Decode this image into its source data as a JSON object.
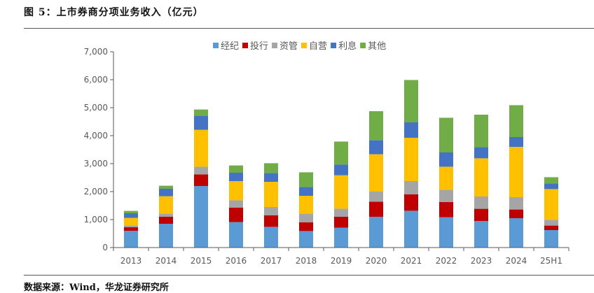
{
  "figure": {
    "title": "图 5：上市券商分项业务收入（亿元）",
    "source": "数据来源：Wind，华龙证券研究所"
  },
  "chart_data": {
    "type": "bar",
    "stacked": true,
    "title": "上市券商分项业务收入（亿元）",
    "xlabel": "",
    "ylabel": "",
    "ylim": [
      0,
      7000
    ],
    "yticks": [
      0,
      1000,
      2000,
      3000,
      4000,
      5000,
      6000,
      7000
    ],
    "ytick_labels": [
      "0",
      "1,000",
      "2,000",
      "3,000",
      "4,000",
      "5,000",
      "6,000",
      "7,000"
    ],
    "grid": false,
    "legend_position": "top-center",
    "categories": [
      "2013",
      "2014",
      "2015",
      "2016",
      "2017",
      "2018",
      "2019",
      "2020",
      "2021",
      "2022",
      "2023",
      "2024",
      "25H1"
    ],
    "series": [
      {
        "name": "经纪",
        "color": "#5B9BD5",
        "values": [
          600,
          850,
          2200,
          910,
          740,
          590,
          710,
          1100,
          1315,
          1085,
          950,
          1050,
          625
        ]
      },
      {
        "name": "投行",
        "color": "#C00000",
        "values": [
          125,
          250,
          415,
          515,
          410,
          310,
          390,
          540,
          585,
          540,
          435,
          310,
          160
        ]
      },
      {
        "name": "资管",
        "color": "#A5A5A5",
        "values": [
          65,
          110,
          275,
          265,
          300,
          300,
          290,
          360,
          475,
          440,
          440,
          440,
          205
        ]
      },
      {
        "name": "自营",
        "color": "#FFC000",
        "values": [
          270,
          625,
          1320,
          685,
          900,
          650,
          1195,
          1335,
          1550,
          825,
          1365,
          1800,
          1100
        ]
      },
      {
        "name": "利息",
        "color": "#4472C4",
        "values": [
          165,
          265,
          500,
          300,
          310,
          315,
          380,
          500,
          550,
          510,
          400,
          350,
          200
        ]
      },
      {
        "name": "其他",
        "color": "#70AD47",
        "values": [
          85,
          110,
          225,
          260,
          355,
          525,
          825,
          1040,
          1515,
          1240,
          1160,
          1140,
          225
        ]
      }
    ]
  }
}
